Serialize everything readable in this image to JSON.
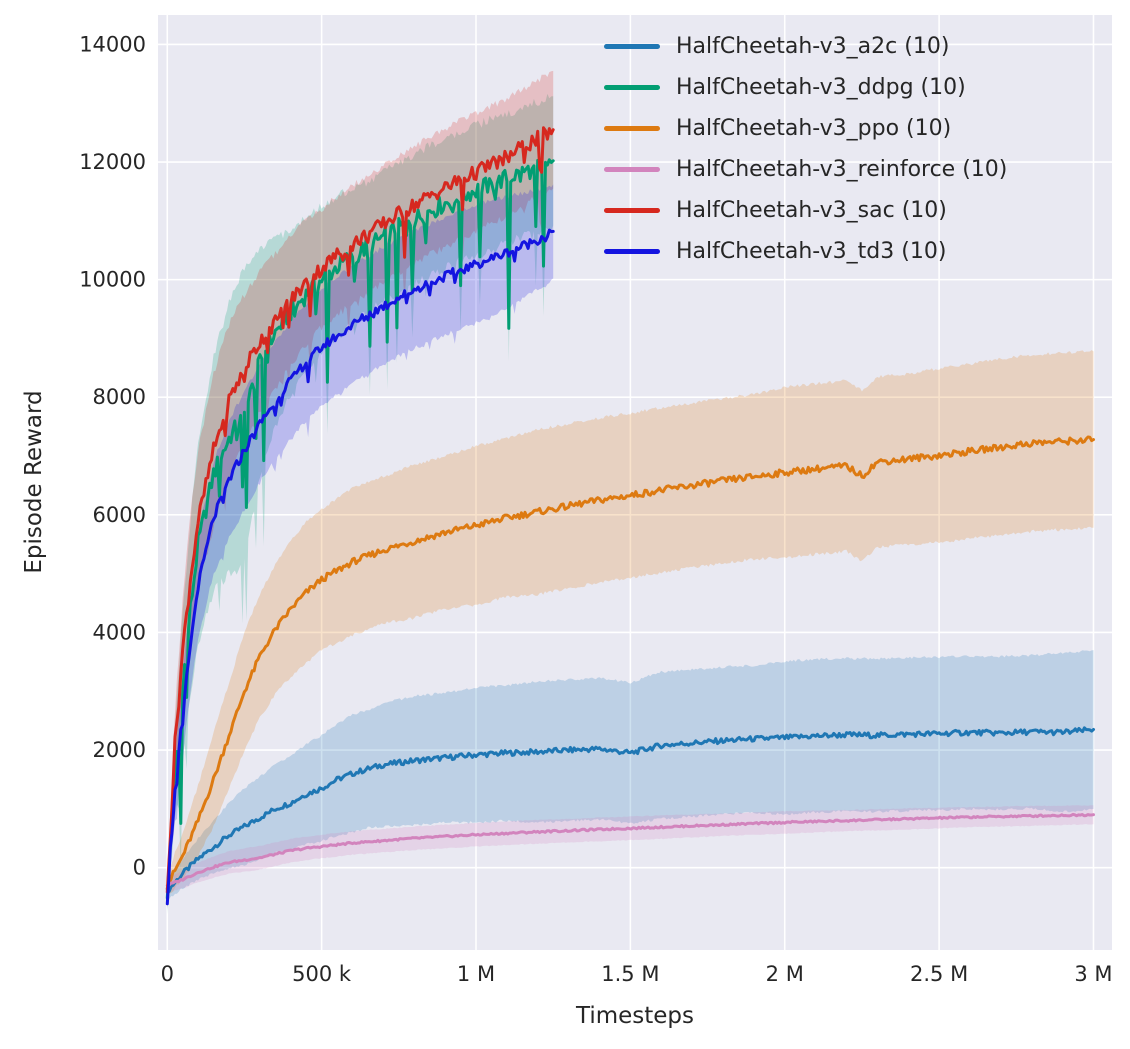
{
  "chart_data": {
    "type": "line",
    "title": "",
    "xlabel": "Timesteps",
    "ylabel": "Episode Reward",
    "xlim": [
      -30000,
      3060000
    ],
    "ylim": [
      -1400,
      14500
    ],
    "grid": true,
    "legend_position": "upper right",
    "legend_frame": false,
    "sample_step": 6000,
    "style": {
      "figure_bg": "#ffffff",
      "plot_bg": "#e9e9f2",
      "grid_color": "#ffffff",
      "text_color": "#262626",
      "band_alpha": 0.22,
      "line_width": 3
    },
    "xticks": [
      {
        "v": 0,
        "label": "0"
      },
      {
        "v": 500000,
        "label": "500 k"
      },
      {
        "v": 1000000,
        "label": "1 M"
      },
      {
        "v": 1500000,
        "label": "1.5 M"
      },
      {
        "v": 2000000,
        "label": "2 M"
      },
      {
        "v": 2500000,
        "label": "2.5 M"
      },
      {
        "v": 3000000,
        "label": "3 M"
      }
    ],
    "yticks": [
      {
        "v": 0,
        "label": "0"
      },
      {
        "v": 2000,
        "label": "2000"
      },
      {
        "v": 4000,
        "label": "4000"
      },
      {
        "v": 6000,
        "label": "6000"
      },
      {
        "v": 8000,
        "label": "8000"
      },
      {
        "v": 10000,
        "label": "10000"
      },
      {
        "v": 12000,
        "label": "12000"
      },
      {
        "v": 14000,
        "label": "14000"
      }
    ],
    "series": [
      {
        "key": "a2c",
        "name": "HalfCheetah-v3_a2c (10)",
        "color": "#1f77b4",
        "noise": 45,
        "spike": 0,
        "points": [
          [
            0,
            -400,
            150
          ],
          [
            50000,
            -100,
            250
          ],
          [
            100000,
            150,
            350
          ],
          [
            150000,
            350,
            450
          ],
          [
            200000,
            550,
            550
          ],
          [
            250000,
            700,
            650
          ],
          [
            300000,
            850,
            700
          ],
          [
            350000,
            1000,
            750
          ],
          [
            400000,
            1100,
            800
          ],
          [
            450000,
            1250,
            850
          ],
          [
            500000,
            1350,
            900
          ],
          [
            550000,
            1500,
            950
          ],
          [
            600000,
            1600,
            1000
          ],
          [
            650000,
            1680,
            1000
          ],
          [
            700000,
            1750,
            1050
          ],
          [
            800000,
            1820,
            1100
          ],
          [
            900000,
            1870,
            1100
          ],
          [
            1000000,
            1920,
            1150
          ],
          [
            1100000,
            1950,
            1150
          ],
          [
            1200000,
            1970,
            1200
          ],
          [
            1300000,
            2000,
            1200
          ],
          [
            1400000,
            2020,
            1200
          ],
          [
            1500000,
            1950,
            1200
          ],
          [
            1600000,
            2080,
            1250
          ],
          [
            1700000,
            2120,
            1250
          ],
          [
            1800000,
            2160,
            1250
          ],
          [
            1900000,
            2190,
            1250
          ],
          [
            2000000,
            2210,
            1300
          ],
          [
            2100000,
            2240,
            1300
          ],
          [
            2200000,
            2260,
            1300
          ],
          [
            2300000,
            2250,
            1300
          ],
          [
            2400000,
            2270,
            1300
          ],
          [
            2500000,
            2280,
            1300
          ],
          [
            2600000,
            2300,
            1300
          ],
          [
            2700000,
            2290,
            1300
          ],
          [
            2800000,
            2310,
            1300
          ],
          [
            2900000,
            2300,
            1350
          ],
          [
            3000000,
            2350,
            1350
          ]
        ]
      },
      {
        "key": "ddpg",
        "name": "HalfCheetah-v3_ddpg (10)",
        "color": "#029e73",
        "noise": 160,
        "spike": 2800,
        "points": [
          [
            0,
            -500,
            200
          ],
          [
            10000,
            400,
            500
          ],
          [
            25000,
            1600,
            800
          ],
          [
            50000,
            3100,
            1200
          ],
          [
            75000,
            4400,
            1500
          ],
          [
            100000,
            5500,
            1700
          ],
          [
            150000,
            6700,
            2000
          ],
          [
            200000,
            7300,
            2300
          ],
          [
            250000,
            7700,
            2500
          ],
          [
            300000,
            8600,
            1900
          ],
          [
            350000,
            9100,
            1600
          ],
          [
            400000,
            9450,
            1400
          ],
          [
            450000,
            9750,
            1300
          ],
          [
            500000,
            10000,
            1250
          ],
          [
            550000,
            10220,
            1200
          ],
          [
            600000,
            10400,
            1150
          ],
          [
            650000,
            10560,
            1100
          ],
          [
            700000,
            10720,
            1100
          ],
          [
            750000,
            10880,
            1100
          ],
          [
            800000,
            11020,
            1100
          ],
          [
            850000,
            11170,
            1100
          ],
          [
            900000,
            11300,
            1100
          ],
          [
            950000,
            11420,
            1100
          ],
          [
            1000000,
            11520,
            1100
          ],
          [
            1050000,
            11630,
            1100
          ],
          [
            1100000,
            11730,
            1100
          ],
          [
            1150000,
            11820,
            1100
          ],
          [
            1200000,
            11920,
            1100
          ],
          [
            1250000,
            12020,
            1100
          ]
        ]
      },
      {
        "key": "ppo",
        "name": "HalfCheetah-v3_ppo (10)",
        "color": "#dd7a11",
        "noise": 55,
        "spike": 0,
        "points": [
          [
            0,
            -300,
            200
          ],
          [
            50000,
            200,
            400
          ],
          [
            100000,
            800,
            600
          ],
          [
            150000,
            1500,
            800
          ],
          [
            200000,
            2250,
            900
          ],
          [
            250000,
            3000,
            1000
          ],
          [
            300000,
            3600,
            1050
          ],
          [
            350000,
            4050,
            1100
          ],
          [
            400000,
            4400,
            1150
          ],
          [
            450000,
            4680,
            1200
          ],
          [
            500000,
            4900,
            1200
          ],
          [
            600000,
            5200,
            1250
          ],
          [
            700000,
            5400,
            1250
          ],
          [
            800000,
            5550,
            1300
          ],
          [
            900000,
            5700,
            1300
          ],
          [
            1000000,
            5820,
            1350
          ],
          [
            1100000,
            5950,
            1350
          ],
          [
            1200000,
            6050,
            1400
          ],
          [
            1300000,
            6150,
            1400
          ],
          [
            1400000,
            6250,
            1400
          ],
          [
            1500000,
            6330,
            1400
          ],
          [
            1600000,
            6420,
            1400
          ],
          [
            1700000,
            6500,
            1400
          ],
          [
            1800000,
            6580,
            1400
          ],
          [
            1900000,
            6650,
            1400
          ],
          [
            2000000,
            6720,
            1450
          ],
          [
            2100000,
            6780,
            1450
          ],
          [
            2200000,
            6830,
            1450
          ],
          [
            2250000,
            6660,
            1450
          ],
          [
            2300000,
            6900,
            1450
          ],
          [
            2400000,
            6950,
            1450
          ],
          [
            2500000,
            7010,
            1480
          ],
          [
            2600000,
            7080,
            1480
          ],
          [
            2700000,
            7150,
            1500
          ],
          [
            2800000,
            7220,
            1500
          ],
          [
            2900000,
            7250,
            1500
          ],
          [
            3000000,
            7280,
            1500
          ]
        ]
      },
      {
        "key": "reinforce",
        "name": "HalfCheetah-v3_reinforce (10)",
        "color": "#d284bd",
        "noise": 15,
        "spike": 0,
        "points": [
          [
            0,
            -300,
            120
          ],
          [
            50000,
            -200,
            150
          ],
          [
            100000,
            -80,
            170
          ],
          [
            150000,
            10,
            180
          ],
          [
            200000,
            90,
            190
          ],
          [
            250000,
            130,
            200
          ],
          [
            300000,
            170,
            200
          ],
          [
            350000,
            230,
            200
          ],
          [
            400000,
            290,
            200
          ],
          [
            450000,
            330,
            200
          ],
          [
            500000,
            360,
            200
          ],
          [
            600000,
            420,
            200
          ],
          [
            700000,
            460,
            200
          ],
          [
            800000,
            500,
            200
          ],
          [
            900000,
            530,
            200
          ],
          [
            1000000,
            560,
            200
          ],
          [
            1200000,
            610,
            200
          ],
          [
            1400000,
            650,
            200
          ],
          [
            1600000,
            690,
            200
          ],
          [
            1800000,
            730,
            190
          ],
          [
            2000000,
            770,
            190
          ],
          [
            2200000,
            800,
            180
          ],
          [
            2400000,
            830,
            180
          ],
          [
            2600000,
            860,
            170
          ],
          [
            2800000,
            880,
            170
          ],
          [
            3000000,
            900,
            160
          ]
        ]
      },
      {
        "key": "sac",
        "name": "HalfCheetah-v3_sac (10)",
        "color": "#d6281f",
        "noise": 130,
        "spike": 800,
        "points": [
          [
            0,
            -500,
            200
          ],
          [
            10000,
            600,
            400
          ],
          [
            25000,
            2100,
            600
          ],
          [
            50000,
            3700,
            900
          ],
          [
            75000,
            4900,
            1100
          ],
          [
            100000,
            5900,
            1200
          ],
          [
            150000,
            7100,
            1300
          ],
          [
            200000,
            7950,
            1300
          ],
          [
            250000,
            8500,
            1250
          ],
          [
            300000,
            8950,
            1200
          ],
          [
            350000,
            9300,
            1150
          ],
          [
            400000,
            9650,
            1100
          ],
          [
            450000,
            9950,
            1050
          ],
          [
            500000,
            10200,
            1000
          ],
          [
            550000,
            10420,
            1000
          ],
          [
            600000,
            10600,
            1000
          ],
          [
            650000,
            10780,
            1000
          ],
          [
            700000,
            10950,
            1000
          ],
          [
            750000,
            11120,
            1000
          ],
          [
            800000,
            11270,
            1000
          ],
          [
            850000,
            11420,
            1000
          ],
          [
            900000,
            11560,
            1000
          ],
          [
            950000,
            11700,
            1000
          ],
          [
            1000000,
            11830,
            1000
          ],
          [
            1050000,
            11960,
            1000
          ],
          [
            1100000,
            12080,
            1000
          ],
          [
            1150000,
            12250,
            1000
          ],
          [
            1200000,
            12400,
            1000
          ],
          [
            1250000,
            12550,
            1000
          ]
        ]
      },
      {
        "key": "td3",
        "name": "HalfCheetah-v3_td3 (10)",
        "color": "#1414e0",
        "noise": 80,
        "spike": 400,
        "points": [
          [
            0,
            -550,
            150
          ],
          [
            10000,
            300,
            300
          ],
          [
            25000,
            1300,
            500
          ],
          [
            50000,
            2600,
            700
          ],
          [
            75000,
            3800,
            800
          ],
          [
            100000,
            4800,
            900
          ],
          [
            150000,
            5950,
            950
          ],
          [
            200000,
            6600,
            1000
          ],
          [
            250000,
            7100,
            1000
          ],
          [
            300000,
            7550,
            1000
          ],
          [
            350000,
            7950,
            1000
          ],
          [
            400000,
            8300,
            1000
          ],
          [
            450000,
            8600,
            1000
          ],
          [
            500000,
            8850,
            1000
          ],
          [
            550000,
            9050,
            1000
          ],
          [
            600000,
            9230,
            1000
          ],
          [
            650000,
            9400,
            1000
          ],
          [
            700000,
            9550,
            1000
          ],
          [
            750000,
            9700,
            1000
          ],
          [
            800000,
            9830,
            1000
          ],
          [
            850000,
            9950,
            1000
          ],
          [
            900000,
            10060,
            1000
          ],
          [
            950000,
            10160,
            1000
          ],
          [
            1000000,
            10260,
            1000
          ],
          [
            1050000,
            10360,
            1000
          ],
          [
            1100000,
            10460,
            950
          ],
          [
            1150000,
            10570,
            900
          ],
          [
            1200000,
            10680,
            850
          ],
          [
            1250000,
            10820,
            800
          ]
        ]
      }
    ]
  }
}
